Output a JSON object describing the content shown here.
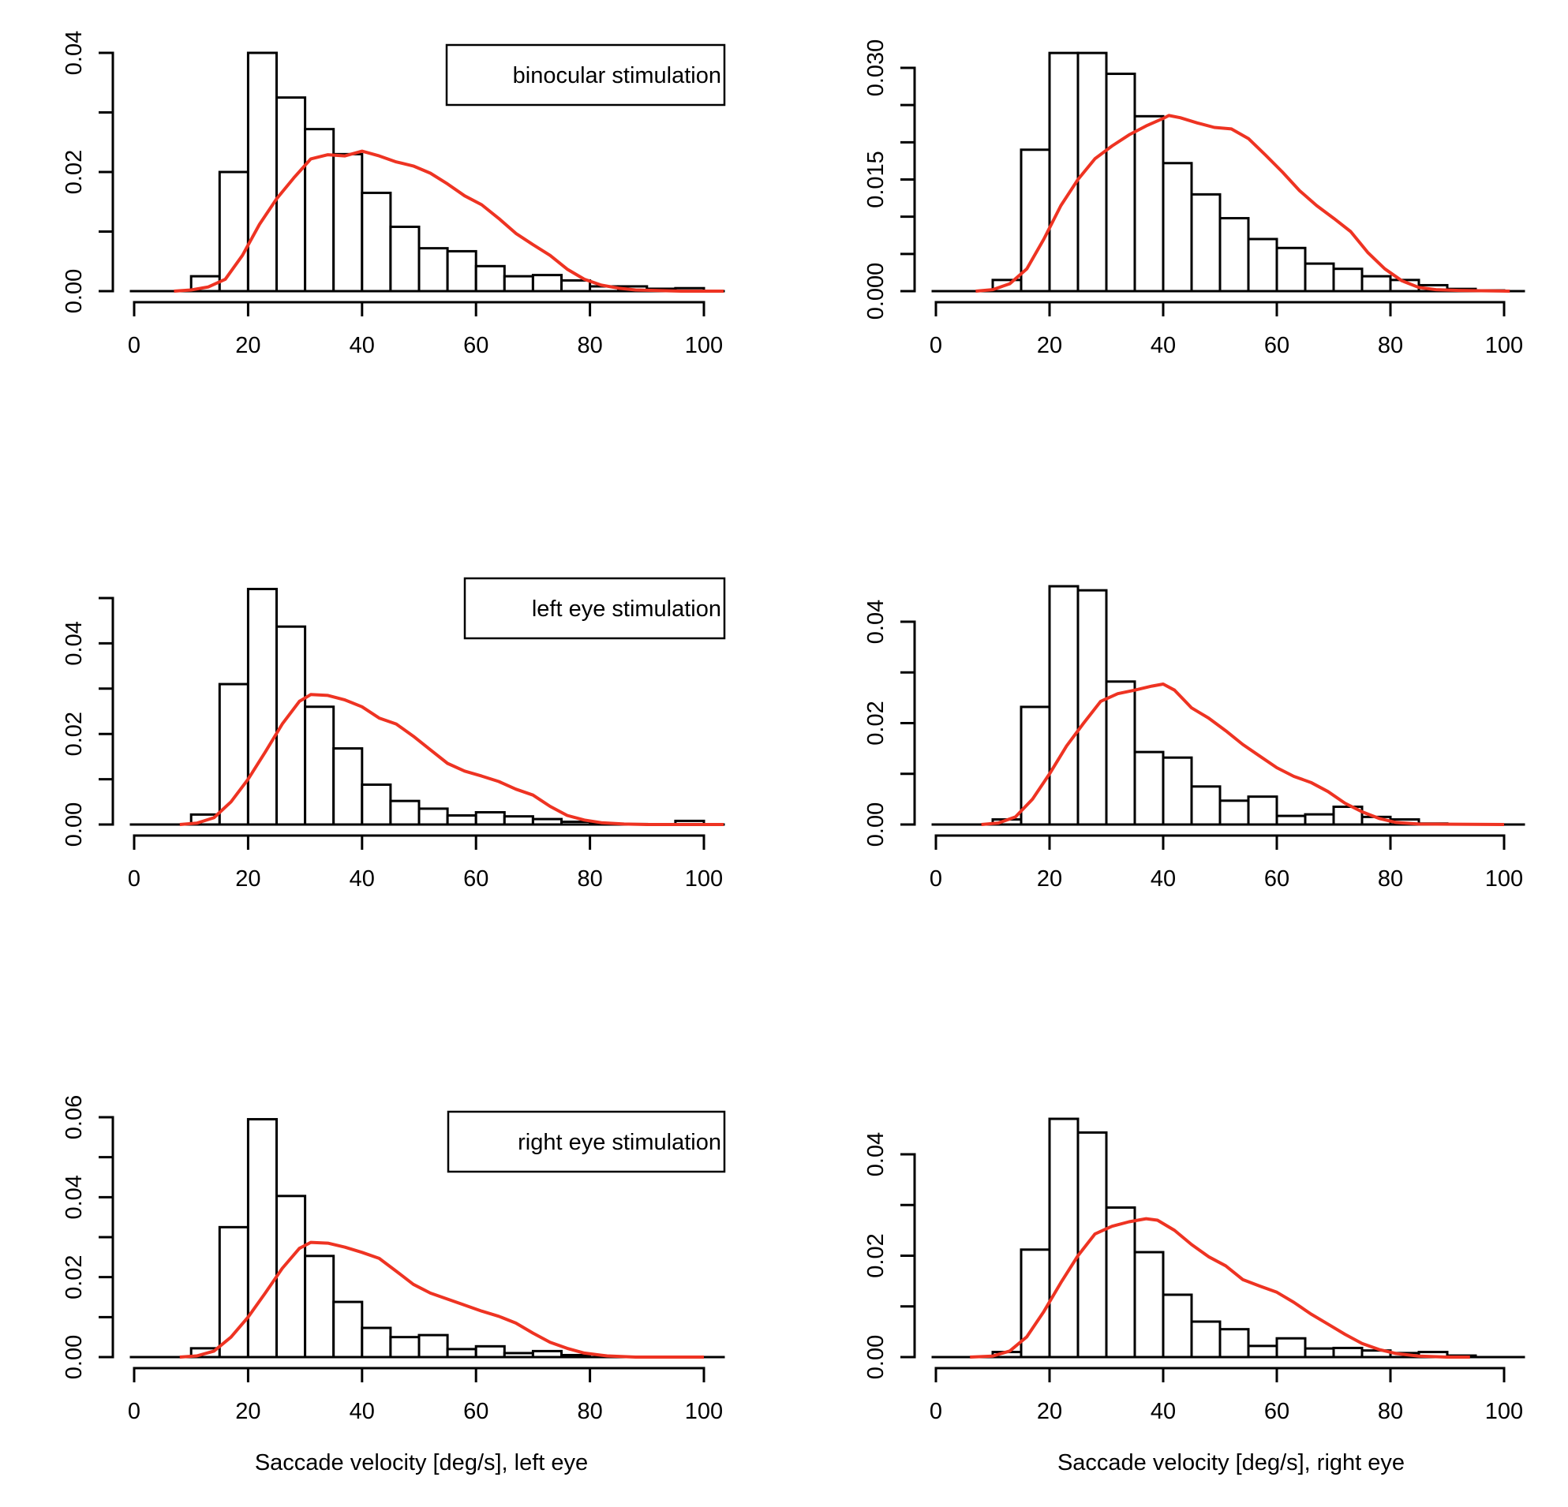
{
  "figure": {
    "density_color": "#ee3322",
    "x_ticks": [
      0,
      20,
      40,
      60,
      80,
      100
    ],
    "xlabel_left": "Saccade velocity [deg/s], left eye",
    "xlabel_right": "Saccade velocity [deg/s], right eye"
  },
  "chart_data": [
    {
      "type": "bar",
      "panel": "binocular-left",
      "legend": "binocular stimulation",
      "xlim": [
        0,
        100
      ],
      "ylim": [
        0,
        0.04
      ],
      "y_ticks": [
        "0.00",
        "0.02",
        "0.04"
      ],
      "bin_edges": [
        5,
        10,
        15,
        20,
        25,
        30,
        35,
        40,
        45,
        50,
        55,
        60,
        65,
        70,
        75,
        80,
        85,
        90,
        95,
        100
      ],
      "values": [
        0.0,
        0.0025,
        0.02,
        0.04,
        0.0325,
        0.0272,
        0.023,
        0.0165,
        0.0108,
        0.0072,
        0.0067,
        0.0042,
        0.0025,
        0.0027,
        0.0018,
        0.0008,
        0.0008,
        0.0004,
        0.0005
      ],
      "density": [
        [
          7,
          0
        ],
        [
          10,
          0.0002
        ],
        [
          13,
          0.0007
        ],
        [
          16,
          0.002
        ],
        [
          19,
          0.006
        ],
        [
          22,
          0.0112
        ],
        [
          25,
          0.0155
        ],
        [
          28,
          0.019
        ],
        [
          31,
          0.0222
        ],
        [
          34,
          0.0229
        ],
        [
          37,
          0.0227
        ],
        [
          40,
          0.0235
        ],
        [
          43,
          0.0227
        ],
        [
          46,
          0.0217
        ],
        [
          49,
          0.021
        ],
        [
          52,
          0.0198
        ],
        [
          55,
          0.018
        ],
        [
          58,
          0.016
        ],
        [
          61,
          0.0145
        ],
        [
          64,
          0.0122
        ],
        [
          67,
          0.0097
        ],
        [
          70,
          0.0078
        ],
        [
          73,
          0.006
        ],
        [
          76,
          0.0037
        ],
        [
          79,
          0.002
        ],
        [
          82,
          0.001
        ],
        [
          85,
          0.0005
        ],
        [
          88,
          0.0002
        ],
        [
          92,
          0.0001
        ],
        [
          96,
          0.0
        ],
        [
          105,
          0.0
        ]
      ]
    },
    {
      "type": "bar",
      "panel": "binocular-right",
      "legend": "",
      "xlim": [
        0,
        100
      ],
      "ylim": [
        0,
        0.03
      ],
      "y_ticks": [
        "0.000",
        "0.015",
        "0.030"
      ],
      "y_minor_step": 0.005,
      "bin_edges": [
        5,
        10,
        15,
        20,
        25,
        30,
        35,
        40,
        45,
        50,
        55,
        60,
        65,
        70,
        75,
        80,
        85,
        90,
        95,
        100
      ],
      "values": [
        0.0,
        0.0015,
        0.019,
        0.032,
        0.032,
        0.0292,
        0.0235,
        0.0172,
        0.013,
        0.0098,
        0.007,
        0.0058,
        0.0037,
        0.003,
        0.002,
        0.0015,
        0.0008,
        0.0003,
        0.0001
      ],
      "density": [
        [
          7,
          0
        ],
        [
          10,
          0.0002
        ],
        [
          13,
          0.001
        ],
        [
          16,
          0.003
        ],
        [
          19,
          0.007
        ],
        [
          22,
          0.0115
        ],
        [
          25,
          0.015
        ],
        [
          28,
          0.0178
        ],
        [
          31,
          0.0195
        ],
        [
          34,
          0.021
        ],
        [
          37,
          0.0222
        ],
        [
          40,
          0.0232
        ],
        [
          41,
          0.0236
        ],
        [
          43,
          0.0233
        ],
        [
          46,
          0.0226
        ],
        [
          49,
          0.022
        ],
        [
          52,
          0.0218
        ],
        [
          55,
          0.0205
        ],
        [
          58,
          0.0183
        ],
        [
          61,
          0.016
        ],
        [
          64,
          0.0135
        ],
        [
          67,
          0.0115
        ],
        [
          70,
          0.0098
        ],
        [
          73,
          0.008
        ],
        [
          76,
          0.0052
        ],
        [
          79,
          0.003
        ],
        [
          82,
          0.0014
        ],
        [
          85,
          0.0005
        ],
        [
          88,
          0.0002
        ],
        [
          92,
          0.0001
        ],
        [
          101,
          0.0
        ]
      ]
    },
    {
      "type": "bar",
      "panel": "left-eye-left",
      "legend": "left eye stimulation",
      "xlim": [
        0,
        100
      ],
      "ylim": [
        0,
        0.05
      ],
      "y_ticks": [
        "0.00",
        "0.02",
        "0.04"
      ],
      "y_minor_step": 0.01,
      "bin_edges": [
        5,
        10,
        15,
        20,
        25,
        30,
        35,
        40,
        45,
        50,
        55,
        60,
        65,
        70,
        75,
        80,
        85,
        90,
        95,
        100
      ],
      "values": [
        0.0,
        0.0022,
        0.031,
        0.052,
        0.0437,
        0.026,
        0.0168,
        0.0088,
        0.0052,
        0.0035,
        0.002,
        0.0027,
        0.0018,
        0.0012,
        0.0006,
        0.0002,
        0.0001,
        0.0,
        0.0008
      ],
      "density": [
        [
          8,
          0
        ],
        [
          11,
          0.0003
        ],
        [
          14,
          0.0015
        ],
        [
          17,
          0.005
        ],
        [
          20,
          0.01
        ],
        [
          23,
          0.016
        ],
        [
          26,
          0.0222
        ],
        [
          29,
          0.0272
        ],
        [
          31,
          0.0287
        ],
        [
          34,
          0.0285
        ],
        [
          37,
          0.0275
        ],
        [
          40,
          0.026
        ],
        [
          43,
          0.0235
        ],
        [
          46,
          0.0222
        ],
        [
          49,
          0.0195
        ],
        [
          52,
          0.0165
        ],
        [
          55,
          0.0135
        ],
        [
          58,
          0.0118
        ],
        [
          61,
          0.0107
        ],
        [
          64,
          0.0095
        ],
        [
          67,
          0.0078
        ],
        [
          70,
          0.0065
        ],
        [
          73,
          0.004
        ],
        [
          76,
          0.002
        ],
        [
          79,
          0.001
        ],
        [
          82,
          0.0004
        ],
        [
          86,
          0.0001
        ],
        [
          90,
          0.0
        ],
        [
          105,
          0.0
        ]
      ]
    },
    {
      "type": "bar",
      "panel": "left-eye-right",
      "legend": "",
      "xlim": [
        0,
        100
      ],
      "ylim": [
        0,
        0.04
      ],
      "y_ticks": [
        "0.00",
        "0.02",
        "0.04"
      ],
      "y_minor_step": 0.01,
      "bin_edges": [
        5,
        10,
        15,
        20,
        25,
        30,
        35,
        40,
        45,
        50,
        55,
        60,
        65,
        70,
        75,
        80,
        85,
        90
      ],
      "values": [
        0.0,
        0.001,
        0.0232,
        0.047,
        0.0462,
        0.0282,
        0.0143,
        0.0132,
        0.0075,
        0.0047,
        0.0055,
        0.0017,
        0.002,
        0.0035,
        0.0015,
        0.001,
        0.0002
      ],
      "density": [
        [
          8,
          0
        ],
        [
          11,
          0.0003
        ],
        [
          14,
          0.0015
        ],
        [
          17,
          0.005
        ],
        [
          20,
          0.01
        ],
        [
          23,
          0.0155
        ],
        [
          26,
          0.02
        ],
        [
          29,
          0.0243
        ],
        [
          32,
          0.0258
        ],
        [
          35,
          0.0265
        ],
        [
          38,
          0.0273
        ],
        [
          40,
          0.0277
        ],
        [
          42,
          0.0265
        ],
        [
          45,
          0.023
        ],
        [
          48,
          0.021
        ],
        [
          51,
          0.0185
        ],
        [
          54,
          0.0158
        ],
        [
          57,
          0.0135
        ],
        [
          60,
          0.0112
        ],
        [
          63,
          0.0095
        ],
        [
          66,
          0.0083
        ],
        [
          69,
          0.0065
        ],
        [
          72,
          0.0042
        ],
        [
          75,
          0.0025
        ],
        [
          78,
          0.0012
        ],
        [
          81,
          0.0004
        ],
        [
          85,
          0.0001
        ],
        [
          100,
          0.0
        ]
      ]
    },
    {
      "type": "bar",
      "panel": "right-eye-left",
      "legend": "right eye stimulation",
      "xlim": [
        0,
        100
      ],
      "ylim": [
        0,
        0.06
      ],
      "y_ticks": [
        "0.00",
        "0.02",
        "0.04",
        "0.06"
      ],
      "y_minor_step": 0.01,
      "bin_edges": [
        5,
        10,
        15,
        20,
        25,
        30,
        35,
        40,
        45,
        50,
        55,
        60,
        65,
        70,
        75,
        80
      ],
      "values": [
        0.0,
        0.0022,
        0.0325,
        0.0595,
        0.0403,
        0.0253,
        0.0138,
        0.0073,
        0.005,
        0.0055,
        0.002,
        0.0027,
        0.001,
        0.0015,
        0.0005
      ],
      "density": [
        [
          8,
          0
        ],
        [
          11,
          0.0003
        ],
        [
          14,
          0.0015
        ],
        [
          17,
          0.005
        ],
        [
          20,
          0.01
        ],
        [
          23,
          0.016
        ],
        [
          26,
          0.0222
        ],
        [
          29,
          0.0272
        ],
        [
          31,
          0.0287
        ],
        [
          34,
          0.0285
        ],
        [
          37,
          0.0275
        ],
        [
          40,
          0.0262
        ],
        [
          43,
          0.0247
        ],
        [
          46,
          0.0215
        ],
        [
          49,
          0.0182
        ],
        [
          52,
          0.016
        ],
        [
          55,
          0.0145
        ],
        [
          58,
          0.013
        ],
        [
          61,
          0.0115
        ],
        [
          64,
          0.0102
        ],
        [
          67,
          0.0085
        ],
        [
          70,
          0.006
        ],
        [
          73,
          0.0037
        ],
        [
          76,
          0.0022
        ],
        [
          79,
          0.001
        ],
        [
          83,
          0.0003
        ],
        [
          88,
          0.0
        ],
        [
          100,
          0.0
        ]
      ]
    },
    {
      "type": "bar",
      "panel": "right-eye-right",
      "legend": "",
      "xlim": [
        0,
        100
      ],
      "ylim": [
        0,
        0.04
      ],
      "y_ticks": [
        "0.00",
        "0.02",
        "0.04"
      ],
      "y_minor_step": 0.01,
      "bin_edges": [
        5,
        10,
        15,
        20,
        25,
        30,
        35,
        40,
        45,
        50,
        55,
        60,
        65,
        70,
        75,
        80,
        85,
        90,
        95
      ],
      "values": [
        0.0,
        0.001,
        0.0212,
        0.047,
        0.0443,
        0.0295,
        0.0207,
        0.0123,
        0.007,
        0.0055,
        0.0022,
        0.0037,
        0.0017,
        0.0018,
        0.0013,
        0.0008,
        0.001,
        0.0003
      ],
      "density": [
        [
          6,
          0
        ],
        [
          10,
          0.0002
        ],
        [
          13,
          0.0012
        ],
        [
          16,
          0.004
        ],
        [
          19,
          0.009
        ],
        [
          22,
          0.0147
        ],
        [
          25,
          0.02
        ],
        [
          28,
          0.0243
        ],
        [
          31,
          0.0258
        ],
        [
          34,
          0.0267
        ],
        [
          37,
          0.0273
        ],
        [
          39,
          0.027
        ],
        [
          42,
          0.025
        ],
        [
          45,
          0.0222
        ],
        [
          48,
          0.0198
        ],
        [
          51,
          0.018
        ],
        [
          54,
          0.0153
        ],
        [
          57,
          0.014
        ],
        [
          60,
          0.0128
        ],
        [
          63,
          0.0108
        ],
        [
          66,
          0.0085
        ],
        [
          69,
          0.0065
        ],
        [
          72,
          0.0045
        ],
        [
          75,
          0.0027
        ],
        [
          78,
          0.0015
        ],
        [
          81,
          0.0007
        ],
        [
          85,
          0.0002
        ],
        [
          90,
          0.0
        ],
        [
          94,
          0.0
        ]
      ]
    }
  ]
}
